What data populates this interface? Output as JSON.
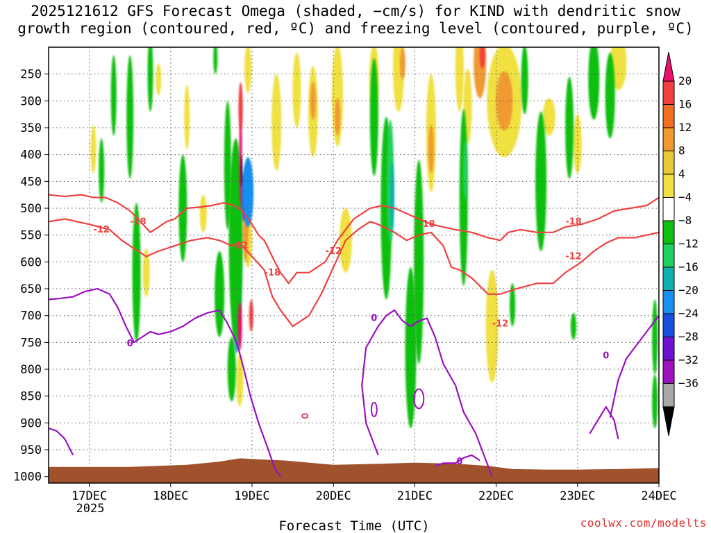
{
  "chart_data": {
    "type": "heatmap",
    "title_lines": [
      "2025121612 GFS Forecast Omega (shaded, −cm/s) for KIND with dendritic snow",
      "growth region (contoured, red, ºC) and freezing level (contoured, purple, ºC)"
    ],
    "xlabel": "Forecast Time (UTC)",
    "x_ticks": [
      "17DEC",
      "18DEC",
      "19DEC",
      "20DEC",
      "21DEC",
      "22DEC",
      "23DEC",
      "24DEC"
    ],
    "x_tick_days": [
      1,
      2,
      3,
      4,
      5,
      6,
      7,
      8
    ],
    "x_range_days": [
      0.5,
      8.0
    ],
    "year_label": "2025",
    "ylabel": "",
    "y_ticks": [
      250,
      300,
      350,
      400,
      450,
      500,
      550,
      600,
      650,
      700,
      750,
      800,
      850,
      900,
      950,
      1000
    ],
    "y_range_hpa": [
      200,
      1012
    ],
    "colorbar": {
      "labels": [
        "20",
        "16",
        "12",
        "8",
        "4",
        "−4",
        "−8",
        "−12",
        "−16",
        "−20",
        "−24",
        "−28",
        "−32",
        "−36"
      ],
      "colors": [
        "#e8106a",
        "#f04040",
        "#f07020",
        "#f09a30",
        "#e8c838",
        "#f0e040",
        "#ffffff",
        "#10c010",
        "#20d060",
        "#10b0b0",
        "#1890f0",
        "#1850e0",
        "#7010d0",
        "#a010c0",
        "#a8a8a8",
        "#000000"
      ]
    },
    "shading_blobs": [
      {
        "color": "#f0e040",
        "day": 1.85,
        "hpa": 260,
        "w": 4,
        "h": 60
      },
      {
        "color": "#f0e040",
        "day": 2.2,
        "hpa": 330,
        "w": 4,
        "h": 120
      },
      {
        "color": "#f0e040",
        "day": 2.95,
        "hpa": 240,
        "w": 5,
        "h": 90
      },
      {
        "color": "#f0e040",
        "day": 3.3,
        "hpa": 340,
        "w": 7,
        "h": 180
      },
      {
        "color": "#f0e040",
        "day": 3.55,
        "hpa": 280,
        "w": 6,
        "h": 140
      },
      {
        "color": "#f0e040",
        "day": 3.75,
        "hpa": 320,
        "w": 7,
        "h": 170
      },
      {
        "color": "#f09a30",
        "day": 3.75,
        "hpa": 300,
        "w": 4,
        "h": 70
      },
      {
        "color": "#f0e040",
        "day": 4.05,
        "hpa": 290,
        "w": 8,
        "h": 190
      },
      {
        "color": "#f09a30",
        "day": 4.05,
        "hpa": 330,
        "w": 4,
        "h": 70
      },
      {
        "color": "#f0e040",
        "day": 4.15,
        "hpa": 560,
        "w": 9,
        "h": 120
      },
      {
        "color": "#f0e040",
        "day": 4.5,
        "hpa": 260,
        "w": 7,
        "h": 130
      },
      {
        "color": "#f0e040",
        "day": 4.8,
        "hpa": 240,
        "w": 8,
        "h": 160
      },
      {
        "color": "#f09a30",
        "day": 4.85,
        "hpa": 230,
        "w": 4,
        "h": 60
      },
      {
        "color": "#f0e040",
        "day": 5.2,
        "hpa": 360,
        "w": 7,
        "h": 220
      },
      {
        "color": "#f09a30",
        "day": 5.2,
        "hpa": 390,
        "w": 4,
        "h": 90
      },
      {
        "color": "#f0e040",
        "day": 5.55,
        "hpa": 240,
        "w": 6,
        "h": 160
      },
      {
        "color": "#f0e040",
        "day": 5.65,
        "hpa": 310,
        "w": 6,
        "h": 140
      },
      {
        "color": "#f09a30",
        "day": 5.8,
        "hpa": 230,
        "w": 9,
        "h": 130
      },
      {
        "color": "#f04040",
        "day": 5.83,
        "hpa": 215,
        "w": 4,
        "h": 50
      },
      {
        "color": "#f0e040",
        "day": 6.1,
        "hpa": 300,
        "w": 25,
        "h": 210
      },
      {
        "color": "#f09a30",
        "day": 6.1,
        "hpa": 300,
        "w": 12,
        "h": 110
      },
      {
        "color": "#f0e040",
        "day": 5.95,
        "hpa": 720,
        "w": 9,
        "h": 210
      },
      {
        "color": "#f0e040",
        "day": 6.65,
        "hpa": 330,
        "w": 9,
        "h": 70
      },
      {
        "color": "#f0e040",
        "day": 7.0,
        "hpa": 380,
        "w": 6,
        "h": 110
      },
      {
        "color": "#f0e040",
        "day": 7.5,
        "hpa": 230,
        "w": 12,
        "h": 100
      },
      {
        "color": "#f0e040",
        "day": 1.7,
        "hpa": 620,
        "w": 5,
        "h": 90
      },
      {
        "color": "#f0e040",
        "day": 2.4,
        "hpa": 510,
        "w": 5,
        "h": 70
      },
      {
        "color": "#f0e040",
        "day": 2.95,
        "hpa": 560,
        "w": 6,
        "h": 100
      },
      {
        "color": "#f0e040",
        "day": 1.05,
        "hpa": 390,
        "w": 4,
        "h": 90
      },
      {
        "color": "#10c010",
        "day": 1.3,
        "hpa": 290,
        "w": 4,
        "h": 150
      },
      {
        "color": "#10c010",
        "day": 1.5,
        "hpa": 330,
        "w": 5,
        "h": 230
      },
      {
        "color": "#10c010",
        "day": 1.75,
        "hpa": 250,
        "w": 4,
        "h": 140
      },
      {
        "color": "#10c010",
        "day": 1.58,
        "hpa": 620,
        "w": 6,
        "h": 260
      },
      {
        "color": "#10c010",
        "day": 1.15,
        "hpa": 430,
        "w": 4,
        "h": 120
      },
      {
        "color": "#10c010",
        "day": 2.15,
        "hpa": 500,
        "w": 6,
        "h": 200
      },
      {
        "color": "#10c010",
        "day": 2.7,
        "hpa": 420,
        "w": 5,
        "h": 240
      },
      {
        "color": "#10c010",
        "day": 2.6,
        "hpa": 660,
        "w": 7,
        "h": 160
      },
      {
        "color": "#10c010",
        "day": 4.5,
        "hpa": 330,
        "w": 6,
        "h": 220
      },
      {
        "color": "#10c010",
        "day": 4.65,
        "hpa": 500,
        "w": 8,
        "h": 340
      },
      {
        "color": "#20d060",
        "day": 4.7,
        "hpa": 450,
        "w": 5,
        "h": 230
      },
      {
        "color": "#10b0b0",
        "day": 4.72,
        "hpa": 480,
        "w": 3,
        "h": 130
      },
      {
        "color": "#10c010",
        "day": 5.05,
        "hpa": 600,
        "w": 7,
        "h": 380
      },
      {
        "color": "#10c010",
        "day": 4.95,
        "hpa": 760,
        "w": 8,
        "h": 300
      },
      {
        "color": "#10c010",
        "day": 5.6,
        "hpa": 480,
        "w": 6,
        "h": 330
      },
      {
        "color": "#20d060",
        "day": 5.62,
        "hpa": 430,
        "w": 3,
        "h": 110
      },
      {
        "color": "#10c010",
        "day": 6.35,
        "hpa": 260,
        "w": 5,
        "h": 130
      },
      {
        "color": "#10c010",
        "day": 6.55,
        "hpa": 450,
        "w": 8,
        "h": 260
      },
      {
        "color": "#10c010",
        "day": 6.9,
        "hpa": 350,
        "w": 6,
        "h": 190
      },
      {
        "color": "#10c010",
        "day": 7.2,
        "hpa": 260,
        "w": 8,
        "h": 150
      },
      {
        "color": "#10c010",
        "day": 7.4,
        "hpa": 290,
        "w": 7,
        "h": 160
      },
      {
        "color": "#10c010",
        "day": 7.95,
        "hpa": 740,
        "w": 4,
        "h": 140
      },
      {
        "color": "#10c010",
        "day": 7.95,
        "hpa": 860,
        "w": 4,
        "h": 100
      },
      {
        "color": "#10c010",
        "day": 6.95,
        "hpa": 720,
        "w": 4,
        "h": 50
      },
      {
        "color": "#10c010",
        "day": 6.2,
        "hpa": 680,
        "w": 4,
        "h": 80
      },
      {
        "color": "#10c010",
        "day": 2.55,
        "hpa": 220,
        "w": 3,
        "h": 60
      },
      {
        "color": "#f0e040",
        "day": 2.85,
        "hpa": 820,
        "w": 5,
        "h": 100
      },
      {
        "color": "#10c010",
        "day": 2.75,
        "hpa": 800,
        "w": 6,
        "h": 120
      },
      {
        "color": "#1890f0",
        "day": 2.83,
        "hpa": 630,
        "w": 4,
        "h": 260
      },
      {
        "color": "#10b0b0",
        "day": 2.81,
        "hpa": 620,
        "w": 7,
        "h": 300
      },
      {
        "color": "#10c010",
        "day": 2.8,
        "hpa": 560,
        "w": 10,
        "h": 380
      },
      {
        "color": "#f09a30",
        "day": 2.92,
        "hpa": 540,
        "w": 4,
        "h": 120
      },
      {
        "color": "#e8106a",
        "day": 2.86,
        "hpa": 400,
        "w": 2,
        "h": 200
      },
      {
        "color": "#f04040",
        "day": 2.86,
        "hpa": 310,
        "w": 3,
        "h": 90
      },
      {
        "color": "#7010d0",
        "day": 2.9,
        "hpa": 480,
        "w": 3,
        "h": 90
      },
      {
        "color": "#1850e0",
        "day": 2.93,
        "hpa": 470,
        "w": 5,
        "h": 100
      },
      {
        "color": "#1890f0",
        "day": 2.95,
        "hpa": 470,
        "w": 8,
        "h": 130
      },
      {
        "color": "#e8106a",
        "day": 2.85,
        "hpa": 720,
        "w": 3,
        "h": 90
      },
      {
        "color": "#f04040",
        "day": 2.99,
        "hpa": 700,
        "w": 3,
        "h": 60
      },
      {
        "color": "#000000",
        "day": 2.87,
        "hpa": 430,
        "w": 1,
        "h": 60
      }
    ],
    "surface_color": "#a0522d",
    "series": [
      {
        "name": "-12",
        "color": "#f04040",
        "x": [
          0.5,
          0.7,
          1.0,
          1.25,
          1.4,
          1.55,
          1.7,
          1.85,
          2.05,
          2.25,
          2.45,
          2.6,
          2.75,
          2.85,
          3.0,
          3.15,
          3.25,
          3.35,
          3.5,
          3.7,
          3.85,
          4.0,
          4.15,
          4.3,
          4.45,
          4.55,
          4.75,
          4.9,
          5.05,
          5.2,
          5.35,
          5.45,
          5.55,
          5.7,
          5.9,
          6.05,
          6.25,
          6.5,
          6.7,
          6.85,
          7.05,
          7.2,
          7.35,
          7.5,
          7.7,
          7.85,
          8.0
        ],
        "hpa": [
          525,
          520,
          530,
          540,
          560,
          575,
          590,
          580,
          570,
          560,
          555,
          560,
          570,
          565,
          590,
          615,
          665,
          690,
          720,
          700,
          660,
          610,
          560,
          540,
          525,
          530,
          545,
          560,
          550,
          545,
          570,
          610,
          615,
          630,
          660,
          660,
          650,
          640,
          640,
          620,
          600,
          580,
          565,
          555,
          555,
          550,
          545
        ]
      },
      {
        "name": "-18",
        "color": "#f04040",
        "x": [
          0.5,
          0.7,
          0.9,
          1.05,
          1.2,
          1.35,
          1.5,
          1.6,
          1.75,
          1.95,
          2.05,
          2.2,
          2.35,
          2.5,
          2.65,
          2.78,
          2.88,
          2.98,
          3.08,
          3.15,
          3.2,
          3.28,
          3.35,
          3.45,
          3.55,
          3.7,
          3.9,
          4.05,
          4.25,
          4.45,
          4.6,
          4.75,
          4.9,
          5.05,
          5.2,
          5.35,
          5.5,
          5.7,
          5.9,
          6.05,
          6.15,
          6.3,
          6.5,
          6.7,
          6.85,
          7.05,
          7.25,
          7.45,
          7.65,
          7.85,
          8.0
        ],
        "hpa": [
          475,
          478,
          475,
          480,
          480,
          490,
          505,
          520,
          545,
          525,
          520,
          500,
          498,
          495,
          490,
          495,
          505,
          525,
          550,
          560,
          575,
          600,
          620,
          640,
          620,
          620,
          600,
          560,
          520,
          500,
          495,
          500,
          510,
          520,
          530,
          535,
          540,
          545,
          555,
          560,
          545,
          540,
          545,
          545,
          535,
          530,
          520,
          505,
          500,
          495,
          480
        ]
      },
      {
        "name": "0",
        "color": "#9a10c0",
        "x": [
          0.5,
          0.65,
          0.8,
          0.95,
          1.1,
          1.25,
          1.35,
          1.45,
          1.55,
          1.65,
          1.75,
          1.85,
          2.0,
          2.15,
          2.3,
          2.45,
          2.6,
          2.7,
          2.78,
          2.83,
          2.9,
          2.98,
          3.08,
          3.2,
          3.28,
          3.35
        ],
        "hpa": [
          670,
          668,
          665,
          655,
          650,
          660,
          685,
          720,
          750,
          740,
          730,
          735,
          730,
          720,
          705,
          695,
          690,
          715,
          740,
          760,
          800,
          850,
          900,
          950,
          985,
          1000
        ]
      },
      {
        "name": "0",
        "color": "#9a10c0",
        "x": [
          4.55,
          4.4,
          4.35,
          4.4,
          4.55,
          4.65,
          4.75,
          4.85,
          4.95,
          5.05,
          5.15,
          5.25,
          5.35,
          5.5,
          5.6,
          5.75,
          5.85,
          5.95
        ],
        "hpa": [
          960,
          900,
          830,
          760,
          720,
          700,
          690,
          710,
          720,
          710,
          705,
          740,
          790,
          830,
          880,
          920,
          960,
          1000
        ]
      },
      {
        "name": "0",
        "color": "#9a10c0",
        "x": [
          5.25,
          5.35,
          5.5,
          5.6,
          5.7,
          5.8
        ],
        "hpa": [
          980,
          975,
          975,
          965,
          960,
          970
        ]
      },
      {
        "name": "0",
        "color": "#9a10c0",
        "x": [
          7.4,
          7.5,
          7.6,
          7.7,
          7.8,
          7.9,
          8.0
        ],
        "hpa": [
          890,
          820,
          780,
          760,
          740,
          720,
          700
        ]
      },
      {
        "name": "0",
        "color": "#9a10c0",
        "x": [
          0.5,
          0.6,
          0.7,
          0.75,
          0.8
        ],
        "hpa": [
          910,
          915,
          930,
          945,
          960
        ]
      },
      {
        "name": "0",
        "color": "#9a10c0",
        "x": [
          7.15,
          7.25,
          7.35,
          7.45,
          7.5
        ],
        "hpa": [
          920,
          895,
          870,
          895,
          930
        ]
      }
    ],
    "contour_labels": [
      {
        "text": "-18",
        "day": 1.6,
        "hpa": 525
      },
      {
        "text": "-12",
        "day": 1.15,
        "hpa": 540
      },
      {
        "text": "-12",
        "day": 2.85,
        "hpa": 570
      },
      {
        "text": "-18",
        "day": 3.25,
        "hpa": 620
      },
      {
        "text": "-12",
        "day": 4.0,
        "hpa": 580
      },
      {
        "text": "-18",
        "day": 5.15,
        "hpa": 530
      },
      {
        "text": "-12",
        "day": 6.05,
        "hpa": 715
      },
      {
        "text": "-18",
        "day": 6.95,
        "hpa": 525
      },
      {
        "text": "-12",
        "day": 6.95,
        "hpa": 590
      },
      {
        "text": "0",
        "day": 1.5,
        "hpa": 752
      },
      {
        "text": "0",
        "day": 4.5,
        "hpa": 705
      },
      {
        "text": "0",
        "day": 5.55,
        "hpa": 972
      },
      {
        "text": "0",
        "day": 7.35,
        "hpa": 775
      }
    ]
  },
  "credit": "coolwx.com/modelts"
}
